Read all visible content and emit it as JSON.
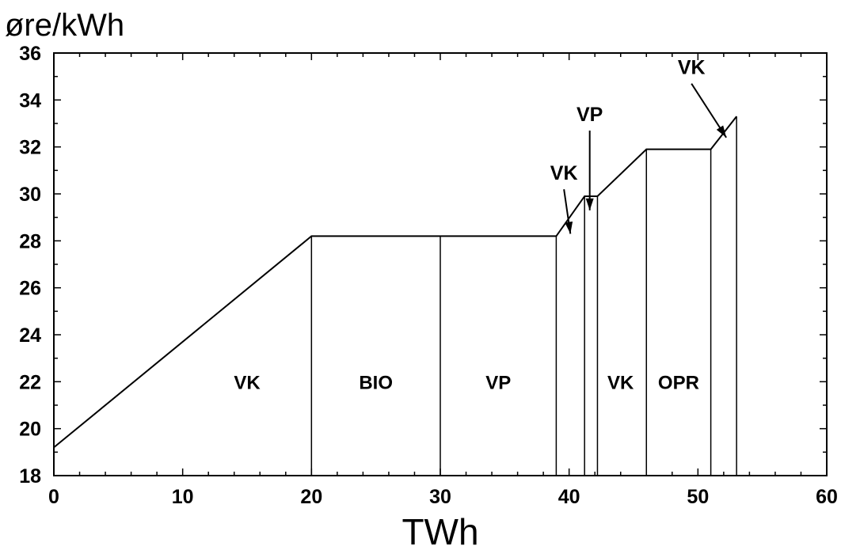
{
  "chart_data": {
    "type": "line",
    "title": "",
    "ylabel": "øre/kWh",
    "xlabel": "TWh",
    "xlim": [
      0,
      60
    ],
    "ylim": [
      18,
      36
    ],
    "x_ticks": [
      0,
      10,
      20,
      30,
      40,
      50,
      60
    ],
    "y_ticks": [
      18,
      20,
      22,
      24,
      26,
      28,
      30,
      32,
      34,
      36
    ],
    "grid": false,
    "series": [
      {
        "x": [
          0,
          20,
          39,
          41.2,
          42.2,
          46,
          51,
          53
        ],
        "y": [
          19.2,
          28.2,
          28.2,
          29.9,
          29.9,
          31.9,
          31.9,
          33.3
        ]
      }
    ],
    "dividers": [
      20,
      30,
      39,
      41.2,
      42.2,
      46,
      51,
      53
    ],
    "region_labels": [
      {
        "text": "VK",
        "x": 15,
        "y": 22
      },
      {
        "text": "BIO",
        "x": 25,
        "y": 22
      },
      {
        "text": "VP",
        "x": 34.5,
        "y": 22
      },
      {
        "text": "VK",
        "x": 44,
        "y": 22
      },
      {
        "text": "OPR",
        "x": 48.5,
        "y": 22
      }
    ],
    "annotations": [
      {
        "text": "VK",
        "x": 39.6,
        "y": 30.6,
        "target_x": 40.1,
        "target_y": 28.3
      },
      {
        "text": "VP",
        "x": 41.6,
        "y": 33.1,
        "target_x": 41.6,
        "target_y": 29.3
      },
      {
        "text": "VK",
        "x": 49.5,
        "y": 35.1,
        "target_x": 52.2,
        "target_y": 32.4
      }
    ]
  }
}
